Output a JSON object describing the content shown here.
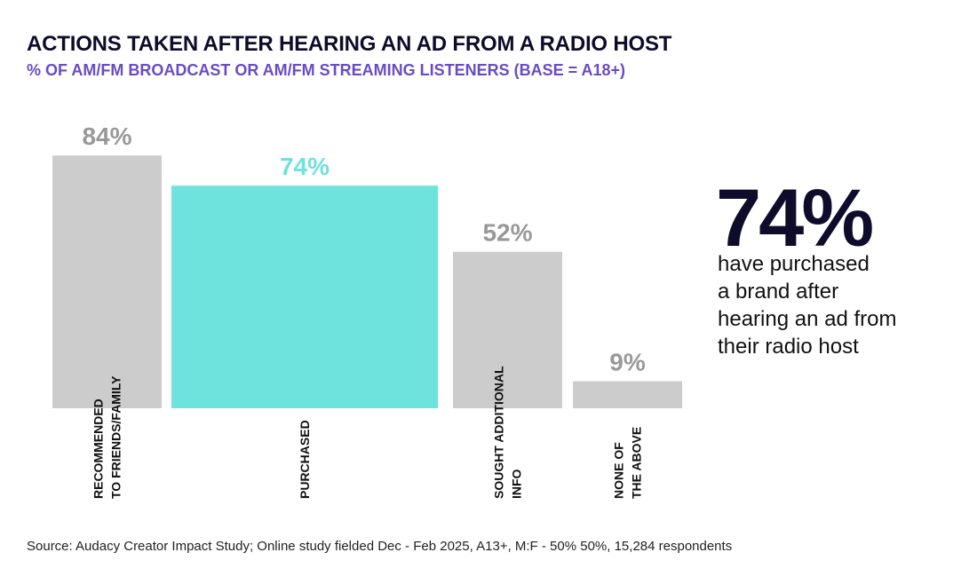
{
  "title": "ACTIONS TAKEN AFTER HEARING AN AD FROM A RADIO HOST",
  "subtitle": "% OF AM/FM BROADCAST OR AM/FM STREAMING LISTENERS (BASE = A18+)",
  "chart_data": {
    "type": "bar",
    "title": "ACTIONS TAKEN AFTER HEARING AN AD FROM A RADIO HOST",
    "subtitle": "% OF AM/FM BROADCAST OR AM/FM STREAMING LISTENERS (BASE = A18+)",
    "categories": [
      [
        "RECOMMENDED",
        "TO FRIENDS/FAMILY"
      ],
      [
        "PURCHASED"
      ],
      [
        "SOUGHT ADDITIONAL",
        "INFO"
      ],
      [
        "NONE OF",
        "THE ABOVE"
      ]
    ],
    "values": [
      84,
      74,
      52,
      9
    ],
    "value_labels": [
      "84%",
      "74%",
      "52%",
      "9%"
    ],
    "highlight_index": 1,
    "colors": {
      "default": "#cccccc",
      "highlight": "#6ee2dd",
      "default_label": "#999999",
      "highlight_label": "#6ee2dd"
    },
    "ylim": [
      0,
      100
    ],
    "xlabel": "",
    "ylabel": "",
    "grid": false
  },
  "callout": {
    "value": "74%",
    "lines": [
      "have purchased",
      "a brand after",
      "hearing an ad from",
      "their radio host"
    ]
  },
  "source": "Source: Audacy Creator Impact Study; Online study fielded Dec - Feb 2025, A13+, M:F - 50% 50%, 15,284 respondents"
}
